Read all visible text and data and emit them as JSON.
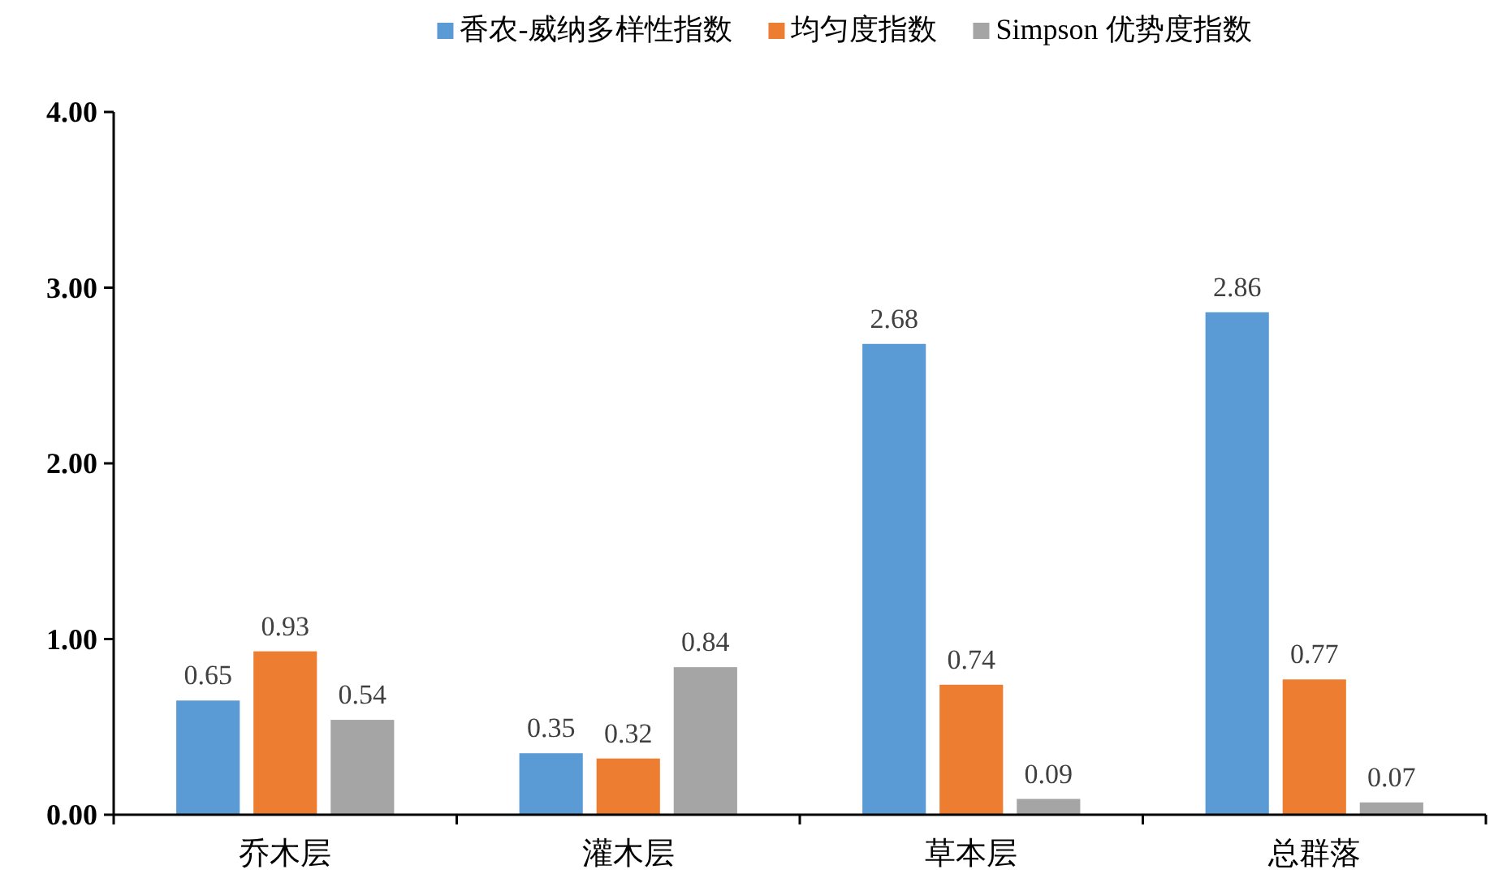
{
  "chart_data": {
    "type": "bar",
    "categories": [
      "乔木层",
      "灌木层",
      "草本层",
      "总群落"
    ],
    "series": [
      {
        "name": "香农-威纳多样性指数",
        "color": "#5b9bd5",
        "values": [
          0.65,
          0.35,
          2.68,
          2.86
        ]
      },
      {
        "name": "均匀度指数",
        "color": "#ed7d31",
        "values": [
          0.93,
          0.32,
          0.74,
          0.77
        ]
      },
      {
        "name": "Simpson 优势度指数",
        "color": "#a5a5a5",
        "values": [
          0.54,
          0.84,
          0.09,
          0.07
        ]
      }
    ],
    "ylim": [
      0,
      4
    ],
    "yticks": [
      {
        "value": 0,
        "label": "0.00"
      },
      {
        "value": 1,
        "label": "1.00"
      },
      {
        "value": 2,
        "label": "2.00"
      },
      {
        "value": 3,
        "label": "3.00"
      },
      {
        "value": 4,
        "label": "4.00"
      }
    ],
    "data_labels": true,
    "legend": "top",
    "grid": false
  }
}
